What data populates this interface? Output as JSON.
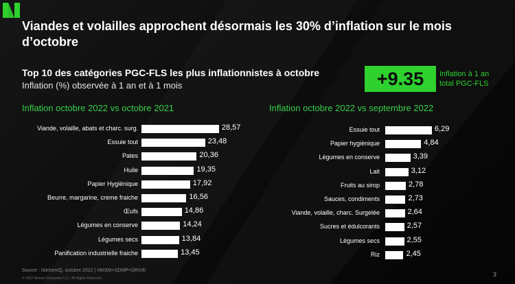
{
  "title": "Viandes et volailles approchent désormais les 30% d’inflation sur le mois d’octobre",
  "subtitle": "Top 10 des catégories PGC-FLS les plus inflationnistes à octobre",
  "subtitle2": "Inflation (%) observée à 1 an et à 1 mois",
  "kpi": {
    "value": "+9.35",
    "label_line1": "Inflation à 1 an",
    "label_line2": "total PGC-FLS"
  },
  "footer": "Source : NielsenIQ, octobre 2022 | HMSM+SDMP+DRIVE",
  "copyright": "© 2022 Nielsen Consumer LLC. All Rights Reserved.",
  "page_number": "3",
  "colors": {
    "accent": "#2ed12e",
    "bar": "#ffffff",
    "background": "#0b0b0b"
  },
  "chart_data": [
    {
      "type": "bar",
      "orientation": "horizontal",
      "title": "Inflation octobre 2022 vs octobre 2021",
      "categories": [
        "Viande, volaille, abats et charc. surg.",
        "Essuie tout",
        "Pates",
        "Huile",
        "Papier Hygiènique",
        "Beurre, margarine, creme fraiche",
        "Œufs",
        "Légumes en conserve",
        "Légumes secs",
        "Panification industrielle fraiche"
      ],
      "values": [
        28.57,
        23.48,
        20.36,
        19.35,
        17.92,
        16.56,
        14.86,
        14.24,
        13.84,
        13.45
      ],
      "value_labels": [
        "28,57",
        "23,48",
        "20,36",
        "19,35",
        "17,92",
        "16,56",
        "14,86",
        "14,24",
        "13,84",
        "13,45"
      ]
    },
    {
      "type": "bar",
      "orientation": "horizontal",
      "title": "Inflation octobre 2022 vs septembre 2022",
      "categories": [
        "Essuie tout",
        "Papier hygiènique",
        "Légumes en conserve",
        "Lait",
        "Fruits au sirop",
        "Sauces, condiments",
        "Viande, volaille, charc. Surgelée",
        "Sucres et édulcorants",
        "Légumes secs",
        "Riz"
      ],
      "values": [
        6.29,
        4.84,
        3.39,
        3.12,
        2.78,
        2.73,
        2.64,
        2.57,
        2.55,
        2.45
      ],
      "value_labels": [
        "6,29",
        "4,84",
        "3,39",
        "3,12",
        "2,78",
        "2,73",
        "2,64",
        "2,57",
        "2,55",
        "2,45"
      ]
    }
  ]
}
